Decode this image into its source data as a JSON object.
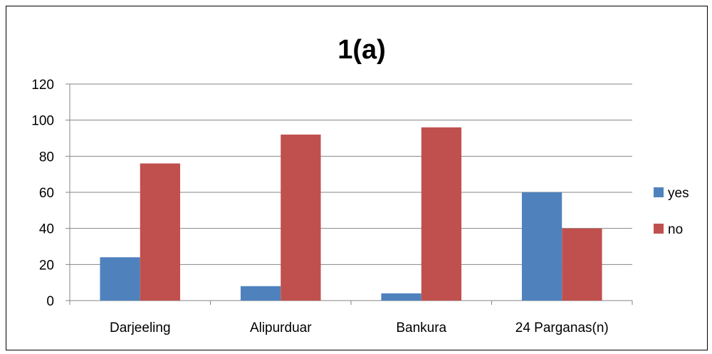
{
  "chart_data": {
    "type": "bar",
    "title": "1(a)",
    "categories": [
      "Darjeeling",
      "Alipurduar",
      "Bankura",
      "24 Parganas(n)"
    ],
    "series": [
      {
        "name": "yes",
        "values": [
          24,
          8,
          4,
          60
        ],
        "color": "#4F81BD"
      },
      {
        "name": "no",
        "values": [
          76,
          92,
          96,
          40
        ],
        "color": "#C0504D"
      }
    ],
    "ylim": [
      0,
      120
    ],
    "yticks": [
      "0",
      "20",
      "40",
      "60",
      "80",
      "100",
      "120"
    ],
    "grid": true,
    "legend": "right"
  }
}
